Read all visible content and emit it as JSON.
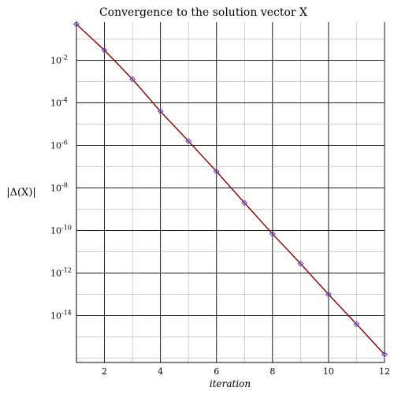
{
  "chart_data": {
    "type": "line",
    "title": "Convergence to the solution vector X",
    "xlabel": "iteration",
    "ylabel": "|Δ(X)|",
    "xlim": [
      1,
      12
    ],
    "ylim_log10": [
      -16.2,
      -0.2
    ],
    "y_scale": "log",
    "grid": true,
    "x_ticks": [
      2,
      4,
      6,
      8,
      10,
      12
    ],
    "y_ticks": [
      {
        "base": "10",
        "exp": "-2"
      },
      {
        "base": "10",
        "exp": "-4"
      },
      {
        "base": "10",
        "exp": "-6"
      },
      {
        "base": "10",
        "exp": "-8"
      },
      {
        "base": "10",
        "exp": "-10"
      },
      {
        "base": "10",
        "exp": "-12"
      },
      {
        "base": "10",
        "exp": "-14"
      }
    ],
    "series": [
      {
        "x": [
          1,
          2,
          3,
          4,
          5,
          6,
          7,
          8,
          9,
          10,
          11,
          12
        ],
        "y": [
          0.5,
          0.03,
          0.0013,
          4e-05,
          1.6e-06,
          6e-08,
          2e-09,
          7e-11,
          2.8e-12,
          1e-13,
          4e-15,
          1.5e-16
        ],
        "line_color": "#8b0000",
        "marker_color": "#6a5acd",
        "marker": "diamond"
      }
    ]
  }
}
